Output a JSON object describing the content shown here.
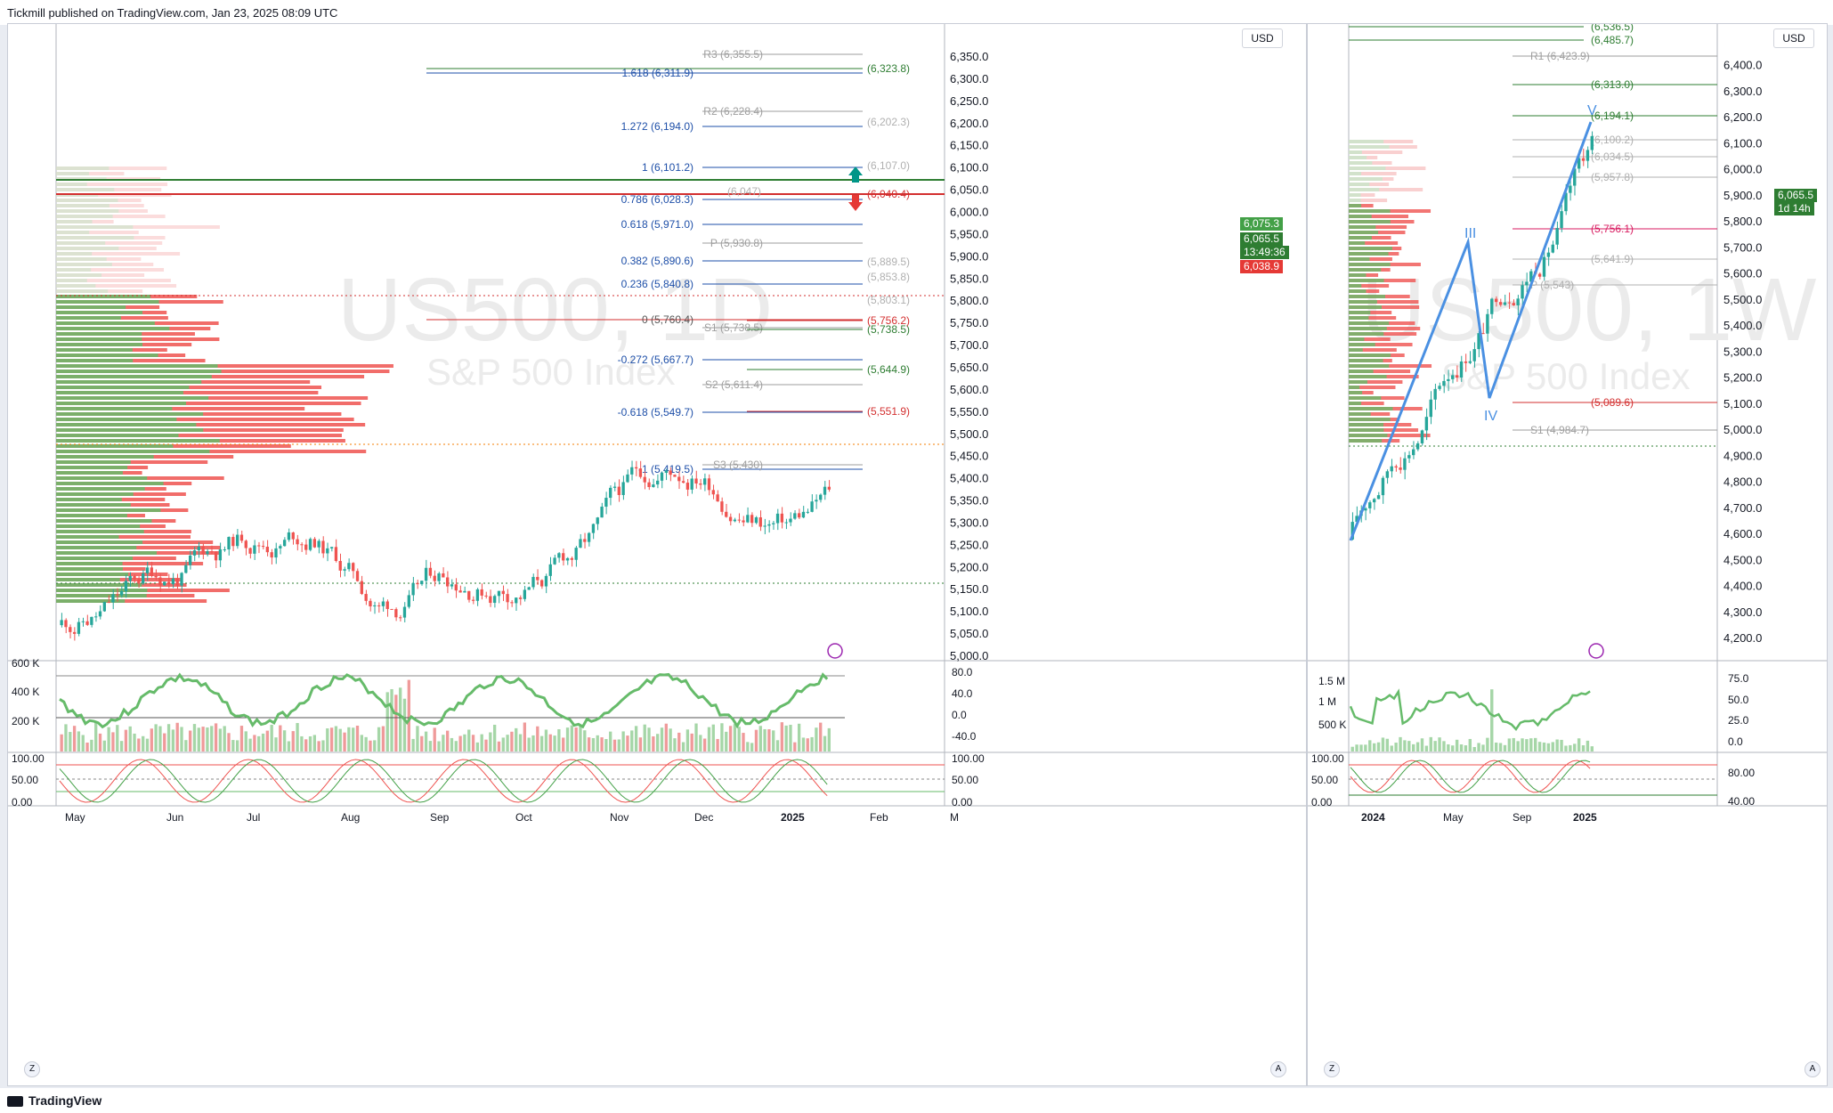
{
  "header": {
    "published_text": "Tickmill published on TradingView.com, Jan 23, 2025 08:09 UTC"
  },
  "footer": {
    "brand": "TradingView"
  },
  "left_chart": {
    "currency_button": "USD",
    "watermark_symbol": "US500, 1D",
    "watermark_name": "S&P 500 Index",
    "price_axis": [
      "6,350.0",
      "6,300.0",
      "6,250.0",
      "6,200.0",
      "6,150.0",
      "6,100.0",
      "6,050.0",
      "6,000.0",
      "5,950.0",
      "5,900.0",
      "5,850.0",
      "5,800.0",
      "5,750.0",
      "5,700.0",
      "5,650.0",
      "5,600.0",
      "5,550.0",
      "5,500.0",
      "5,450.0",
      "5,400.0",
      "5,350.0",
      "5,300.0",
      "5,250.0",
      "5,200.0",
      "5,150.0",
      "5,100.0",
      "5,050.0",
      "5,000.0"
    ],
    "time_axis": [
      "May",
      "Jun",
      "Jul",
      "Aug",
      "Sep",
      "Oct",
      "Nov",
      "Dec",
      "2025",
      "Feb",
      "M"
    ],
    "price_tags": {
      "upper": "6,075.3",
      "last": "6,065.5",
      "countdown": "13:49:36",
      "lower": "6,038.9"
    },
    "colors": {
      "up": "#26a69a",
      "down": "#ef5350",
      "fib": "#1e4fa8",
      "pivot": "#9e9e9e",
      "green_level": "#2e7d32",
      "red_level": "#d32f2f"
    },
    "fib_levels": [
      "1.618 (6,311.9)",
      "1.272 (6,194.0)",
      "1 (6,101.2)",
      "0.786 (6,028.3)",
      "0.618 (5,971.0)",
      "0.382 (5,890.6)",
      "0.236 (5,840.8)",
      "0 (5,760.4)",
      "-0.272 (5,667.7)",
      "-0.618 (5,549.7)",
      "-1 (5,419.5)"
    ],
    "pivot_levels": [
      "R3 (6,355.5)",
      "R2 (6,228.4)",
      "S1 (5,738.5)",
      "S2 (5,611.4)",
      "S3 (5,430)",
      "P (5,930.8)"
    ],
    "side_levels_green": [
      "(6,323.8)",
      "(5,738.5)",
      "(5,644.9)"
    ],
    "side_levels_red": [
      "(5,756.2)",
      "(5,551.9)",
      "(6,040.4)"
    ],
    "side_levels_grey": [
      "(6,202.3)",
      "(6,107.0)",
      "(5,889.5)",
      "(5,853.8)",
      "(5,803.1)",
      "(6,047)"
    ],
    "volume_axis": [
      "600 K",
      "400 K",
      "200 K"
    ],
    "rsi_axis": [
      "80.0",
      "40.0",
      "0.0",
      "-40.0"
    ],
    "stoch_axis_left": [
      "100.00",
      "50.00",
      "0.00"
    ],
    "stoch_axis_right": [
      "100.00",
      "50.00",
      "0.00"
    ]
  },
  "right_chart": {
    "currency_button": "USD",
    "watermark_symbol": "US500, 1W",
    "watermark_name": "S&P 500 Index",
    "price_axis": [
      "6,400.0",
      "6,300.0",
      "6,200.0",
      "6,100.0",
      "6,000.0",
      "5,900.0",
      "5,800.0",
      "5,700.0",
      "5,600.0",
      "5,500.0",
      "5,400.0",
      "5,300.0",
      "5,200.0",
      "5,100.0",
      "5,000.0",
      "4,900.0",
      "4,800.0",
      "4,700.0",
      "4,600.0",
      "4,500.0",
      "4,400.0",
      "4,300.0",
      "4,200.0"
    ],
    "time_axis": [
      "2024",
      "May",
      "Sep",
      "2025"
    ],
    "price_tags": {
      "last": "6,065.5",
      "countdown": "1d 14h"
    },
    "levels": [
      "(6,536.5)",
      "(6,485.7)",
      "R1 (6,423.9)",
      "(6,313.0)",
      "(6,194.1)",
      "(6,100.2)",
      "(6,034.5)",
      "(5,957.8)",
      "(5,756.1)",
      "(5,641.9)",
      "P (5,543)",
      "(5,089.6)",
      "S1 (4,984.7)"
    ],
    "wave_labels": [
      "III",
      "IV",
      "V"
    ],
    "volume_axis": [
      "1.5 M",
      "1 M",
      "500 K"
    ],
    "rsi_axis": [
      "75.0",
      "50.0",
      "25.0",
      "0.0"
    ],
    "stoch_axis_left": [
      "100.00",
      "50.00",
      "0.00"
    ],
    "stoch_axis_right": [
      "80.00",
      "40.00"
    ]
  }
}
